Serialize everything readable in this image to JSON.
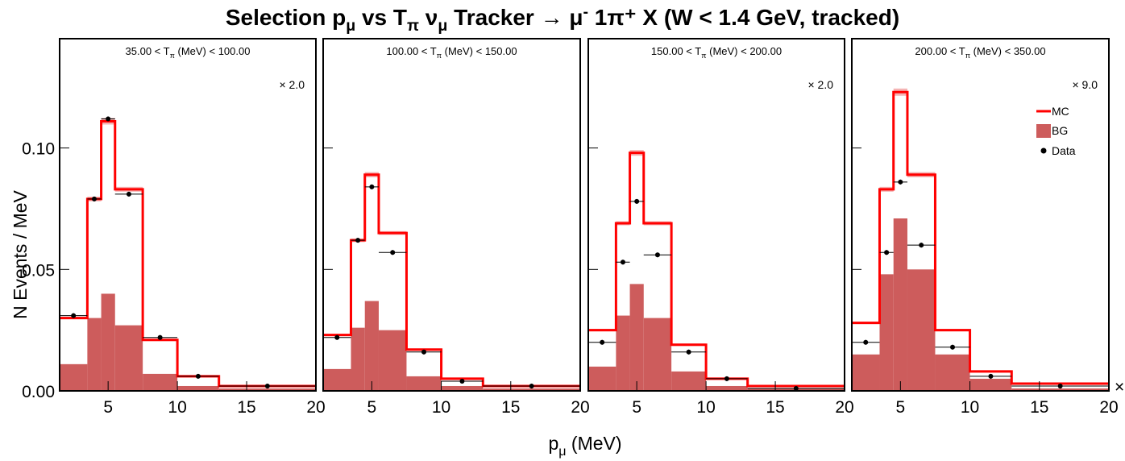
{
  "figure": {
    "title_main": "Selection p",
    "title_mu_sub": "μ",
    "title_mid": " vs T",
    "title_pi_sub": "π",
    "title_nu": "  ν",
    "title_nu_sub": "μ",
    "title_tracker": " Tracker → μ",
    "title_minus_sup": "-",
    "title_tail": " 1π⁺ X  (W < 1.4 GeV, tracked)",
    "ylabel": "N Events / MeV",
    "xlabel_main": "p",
    "xlabel_sub": "μ",
    "xlabel_unit": " (MeV)",
    "corner_mark": "×"
  },
  "colors": {
    "mc": "#ff0000",
    "mc_band": "#f4b4b4",
    "bg": "#cd5c5c",
    "data": "#000000"
  },
  "legend": [
    {
      "label": "MC",
      "icon": "red-line"
    },
    {
      "label": "BG",
      "icon": "filled-box"
    },
    {
      "label": "Data",
      "icon": "black-dot"
    }
  ],
  "chart_data": {
    "type": "histogram",
    "bin_edges": [
      1.5,
      3.5,
      4.5,
      5.5,
      7.5,
      10.0,
      13.0,
      20.0
    ],
    "xlim": [
      1.5,
      20
    ],
    "ylim": [
      0,
      0.145
    ],
    "x_ticks": [
      "5",
      "10",
      "15",
      "20"
    ],
    "y_ticks": [
      "0.00",
      "0.05",
      "0.10"
    ],
    "panels": [
      {
        "title_pre": "35.00 < T",
        "title_sub": "π",
        "title_post": " (MeV) < 100.00",
        "scale": "× 2.0",
        "mc": [
          0.03,
          0.079,
          0.111,
          0.083,
          0.021,
          0.006,
          0.002
        ],
        "bg": [
          0.011,
          0.03,
          0.04,
          0.027,
          0.007,
          0.002,
          0.001
        ],
        "data": [
          0.031,
          0.079,
          0.112,
          0.081,
          0.022,
          0.006,
          0.002
        ]
      },
      {
        "title_pre": "100.00 < T",
        "title_sub": "π",
        "title_post": " (MeV) < 150.00",
        "scale": "",
        "mc": [
          0.023,
          0.062,
          0.089,
          0.065,
          0.017,
          0.005,
          0.002
        ],
        "bg": [
          0.009,
          0.026,
          0.037,
          0.025,
          0.006,
          0.002,
          0.001
        ],
        "data": [
          0.022,
          0.062,
          0.084,
          0.057,
          0.016,
          0.004,
          0.002
        ]
      },
      {
        "title_pre": "150.00 < T",
        "title_sub": "π",
        "title_post": " (MeV) < 200.00",
        "scale": "× 2.0",
        "mc": [
          0.025,
          0.069,
          0.098,
          0.069,
          0.019,
          0.005,
          0.002
        ],
        "bg": [
          0.01,
          0.031,
          0.044,
          0.03,
          0.008,
          0.002,
          0.001
        ],
        "data": [
          0.02,
          0.053,
          0.078,
          0.056,
          0.016,
          0.005,
          0.001
        ]
      },
      {
        "title_pre": "200.00 < T",
        "title_sub": "π",
        "title_post": " (MeV) < 350.00",
        "scale": "× 9.0",
        "mc": [
          0.028,
          0.083,
          0.123,
          0.089,
          0.025,
          0.008,
          0.003
        ],
        "bg": [
          0.015,
          0.048,
          0.071,
          0.05,
          0.015,
          0.005,
          0.001
        ],
        "data": [
          0.02,
          0.057,
          0.086,
          0.06,
          0.018,
          0.006,
          0.002
        ]
      }
    ]
  }
}
